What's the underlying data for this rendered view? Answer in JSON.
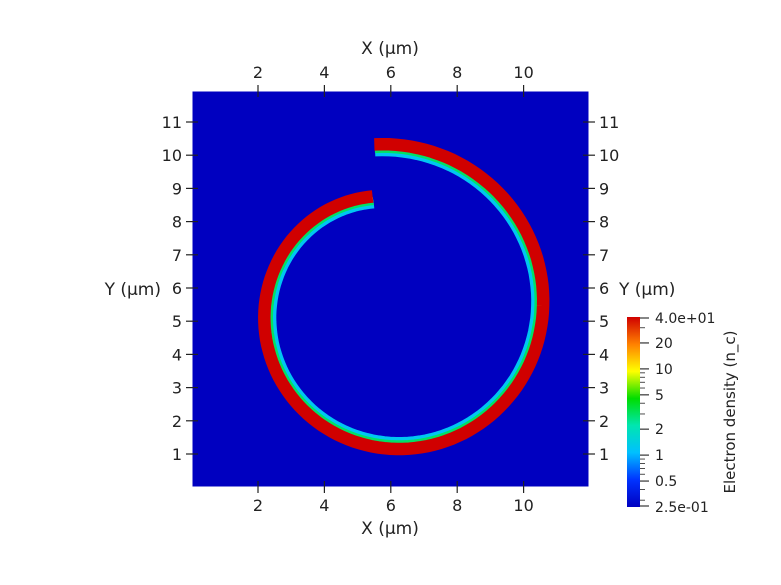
{
  "chart_data": {
    "type": "heatmap",
    "title": "",
    "xlabel": "X (µm)",
    "ylabel": "Y (µm)",
    "xlim": [
      0,
      12
    ],
    "ylim": [
      0,
      12
    ],
    "x_ticks": [
      2,
      4,
      6,
      8,
      10
    ],
    "y_ticks": [
      1,
      2,
      3,
      4,
      5,
      6,
      7,
      8,
      9,
      10,
      11
    ],
    "axes_on_all_sides": true,
    "grid": false,
    "background_value": 0.25,
    "structure": {
      "shape": "spiral ring",
      "center": [
        6.0,
        5.35
      ],
      "radius_start": 3.45,
      "radius_end": 5.0,
      "start_point": [
        5.5,
        8.45
      ],
      "end_point": [
        5.5,
        10.35
      ],
      "thickness": 0.5,
      "peak_value": 40
    },
    "colorbar": {
      "title": "Electron density (n_c)",
      "scale": "log",
      "min": 0.25,
      "max": 40,
      "min_label": "2.5e-01",
      "max_label": "4.0e+01",
      "tick_values": [
        0.5,
        1,
        2,
        5,
        10,
        20
      ],
      "tick_labels": [
        "0.5",
        "1",
        "2",
        "5",
        "10",
        "20"
      ],
      "colormap": [
        "#0000c0",
        "#0033ff",
        "#00c0ff",
        "#00e6b0",
        "#00dd00",
        "#ffff00",
        "#ff8000",
        "#d00000"
      ],
      "placement": "right"
    }
  }
}
